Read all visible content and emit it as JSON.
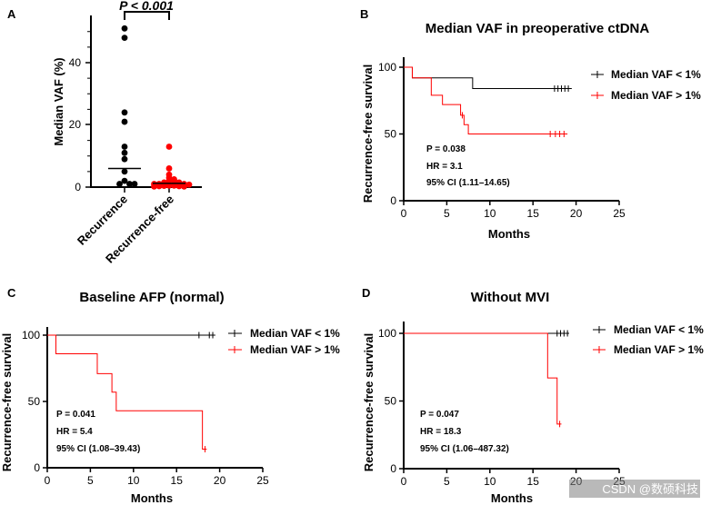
{
  "colors": {
    "black_group": "#000000",
    "red_group": "#ff0000",
    "axis": "#000000"
  },
  "watermark": "CSDN @数硕科技",
  "chart_data": [
    {
      "panel": "A",
      "type": "scatter",
      "title": "",
      "ylabel": "Median VAF (%)",
      "ylim": [
        0,
        55
      ],
      "yticks": [
        "0",
        "20",
        "40"
      ],
      "categories": [
        "Recurrence",
        "Recurrence-free"
      ],
      "significance": "P < 0.001",
      "series": [
        {
          "name": "Recurrence",
          "color": "#000000",
          "median": 6,
          "values": [
            51,
            48,
            24,
            21,
            13,
            11,
            9,
            5,
            2,
            1,
            1,
            1
          ]
        },
        {
          "name": "Recurrence-free",
          "color": "#ff0000",
          "median": 1.2,
          "values": [
            13,
            6,
            4,
            3,
            2.5,
            2,
            2,
            1.5,
            1.5,
            1,
            1,
            1,
            0.8,
            0.5,
            0.5,
            0.4,
            0.3,
            0.3,
            0.2,
            0.2
          ]
        }
      ]
    },
    {
      "panel": "B",
      "type": "line",
      "title": "Median VAF in preoperative ctDNA",
      "xlabel": "Months",
      "ylabel": "Recurrence-free survival",
      "xlim": [
        0,
        25
      ],
      "ylim": [
        0,
        100
      ],
      "xticks": [
        "0",
        "5",
        "10",
        "15",
        "20",
        "25"
      ],
      "yticks": [
        "0",
        "50",
        "100"
      ],
      "stats": {
        "p": "P = 0.038",
        "hr": "HR = 3.1",
        "ci": "95% CI (1.11–14.65)"
      },
      "series": [
        {
          "name": "Median VAF < 1%",
          "color": "#000000",
          "steps": [
            [
              0,
              100
            ],
            [
              1,
              92
            ],
            [
              8,
              84
            ],
            [
              19.5,
              84
            ]
          ],
          "censors": [
            [
              17.5,
              84
            ],
            [
              17.9,
              84
            ],
            [
              18.3,
              84
            ],
            [
              18.7,
              84
            ],
            [
              19.1,
              84
            ]
          ]
        },
        {
          "name": "Median VAF > 1%",
          "color": "#ff0000",
          "steps": [
            [
              0,
              100
            ],
            [
              1,
              92
            ],
            [
              3.2,
              79
            ],
            [
              4.5,
              72
            ],
            [
              6.6,
              64
            ],
            [
              7,
              57
            ],
            [
              7.5,
              50
            ],
            [
              19,
              50
            ]
          ],
          "censors": [
            [
              6.8,
              64
            ],
            [
              17,
              50
            ],
            [
              17.6,
              50
            ],
            [
              18.1,
              50
            ],
            [
              18.6,
              50
            ]
          ]
        }
      ]
    },
    {
      "panel": "C",
      "type": "line",
      "title": "Baseline AFP (normal)",
      "xlabel": "Months",
      "ylabel": "Recurrence-free survival",
      "xlim": [
        0,
        25
      ],
      "ylim": [
        0,
        100
      ],
      "xticks": [
        "0",
        "5",
        "10",
        "15",
        "20",
        "25"
      ],
      "yticks": [
        "0",
        "50",
        "100"
      ],
      "stats": {
        "p": "P = 0.041",
        "hr": "HR = 5.4",
        "ci": "95% CI (1.08–39.43)"
      },
      "series": [
        {
          "name": "Median VAF < 1%",
          "color": "#000000",
          "steps": [
            [
              0,
              100
            ],
            [
              19.5,
              100
            ]
          ],
          "censors": [
            [
              17.6,
              100
            ],
            [
              18.8,
              100
            ],
            [
              19.2,
              100
            ]
          ]
        },
        {
          "name": "Median VAF > 1%",
          "color": "#ff0000",
          "steps": [
            [
              0,
              100
            ],
            [
              1,
              86
            ],
            [
              5.8,
              71
            ],
            [
              7.5,
              57
            ],
            [
              8,
              43
            ],
            [
              18,
              14
            ],
            [
              18.5,
              14
            ]
          ],
          "censors": [
            [
              18.3,
              14
            ]
          ]
        }
      ]
    },
    {
      "panel": "D",
      "type": "line",
      "title": "Without MVI",
      "xlabel": "Months",
      "ylabel": "Recurrence-free survival",
      "xlim": [
        0,
        25
      ],
      "ylim": [
        0,
        100
      ],
      "xticks": [
        "0",
        "5",
        "10",
        "15",
        "20",
        "25"
      ],
      "yticks": [
        "0",
        "50",
        "100"
      ],
      "stats": {
        "p": "P = 0.047",
        "hr": "HR = 18.3",
        "ci": "95% CI (1.06–487.32)"
      },
      "series": [
        {
          "name": "Median VAF < 1%",
          "color": "#000000",
          "steps": [
            [
              0,
              100
            ],
            [
              19.2,
              100
            ]
          ],
          "censors": [
            [
              17.8,
              100
            ],
            [
              18.2,
              100
            ],
            [
              18.6,
              100
            ],
            [
              19,
              100
            ]
          ]
        },
        {
          "name": "Median VAF > 1%",
          "color": "#ff0000",
          "steps": [
            [
              0,
              100
            ],
            [
              16.7,
              67
            ],
            [
              17.8,
              33
            ],
            [
              18.3,
              33
            ]
          ],
          "censors": [
            [
              18.1,
              33
            ]
          ]
        }
      ]
    }
  ]
}
